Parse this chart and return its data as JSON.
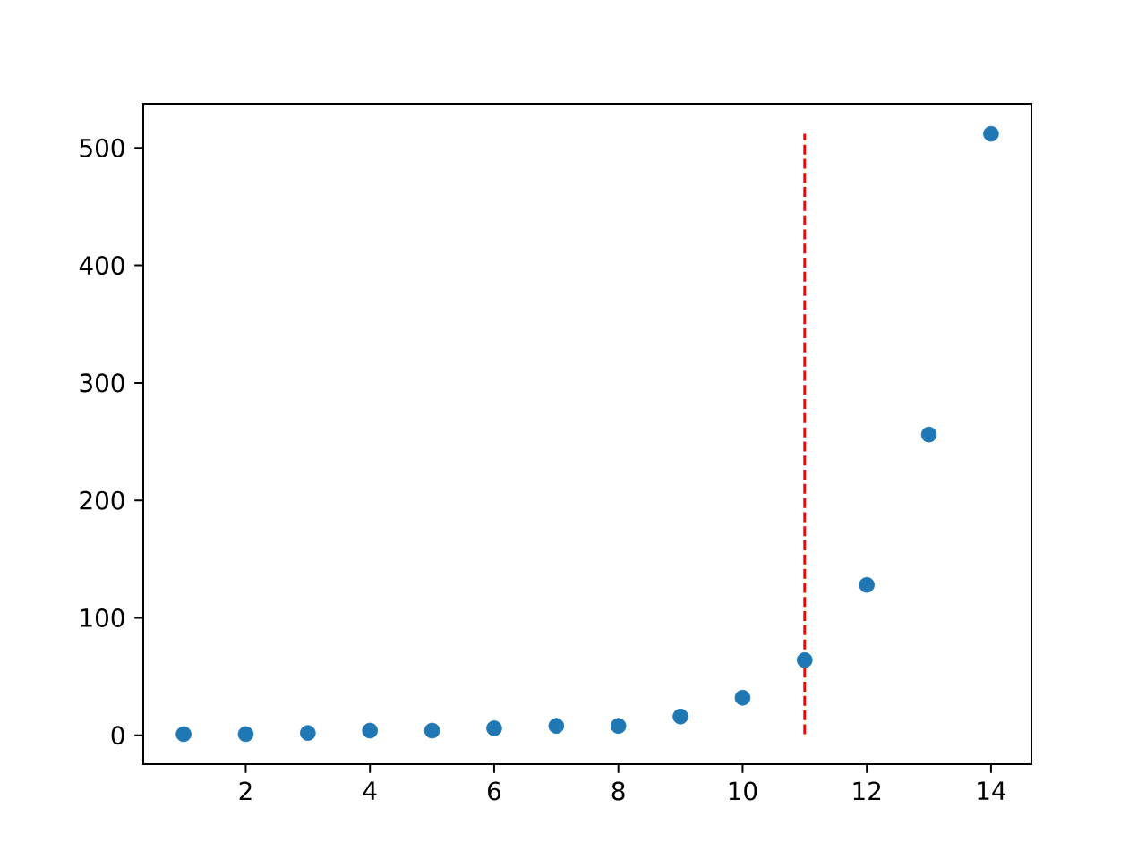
{
  "chart_data": {
    "type": "scatter",
    "x": [
      1,
      2,
      3,
      4,
      5,
      6,
      7,
      8,
      9,
      10,
      11,
      12,
      13,
      14
    ],
    "series": [
      {
        "color": "#1f77b4",
        "marker": "circle",
        "values": [
          1,
          1,
          2,
          4,
          4,
          6,
          8,
          8,
          16,
          32,
          64,
          128,
          256,
          512
        ]
      },
      {
        "type": "line",
        "color": "#ff0000",
        "line_style": "dashed",
        "marker": "none",
        "x": [
          11,
          11
        ],
        "values": [
          1,
          512
        ]
      }
    ],
    "xlim": [
      0.35,
      14.65
    ],
    "ylim": [
      -24.55,
      537.55
    ],
    "xticks": [
      2,
      4,
      6,
      8,
      10,
      12,
      14
    ],
    "yticks": [
      0,
      100,
      200,
      300,
      400,
      500
    ]
  }
}
